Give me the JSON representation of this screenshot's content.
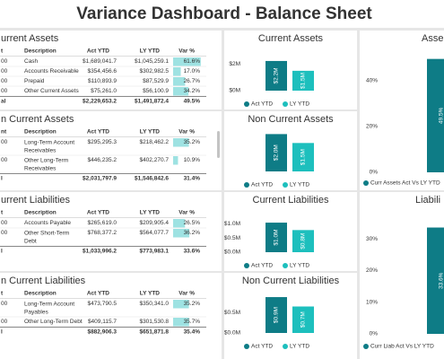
{
  "header": {
    "title": "Variance Dashboard - Balance Sheet"
  },
  "tables": [
    {
      "title": "urrent Assets",
      "columns": [
        "t",
        "Description",
        "Act YTD",
        "LY YTD",
        "Var %"
      ],
      "rows": [
        [
          "00",
          "Cash",
          "$1,689,041.7",
          "$1,045,259.1",
          "61.6%"
        ],
        [
          "00",
          "Accounts Receivable",
          "$354,456.6",
          "$302,982.5",
          "17.0%"
        ],
        [
          "00",
          "Prepaid",
          "$110,893.9",
          "$87,529.9",
          "26.7%"
        ],
        [
          "00",
          "Other Current Assets",
          "$75,261.0",
          "$56,100.9",
          "34.2%"
        ]
      ],
      "total": [
        "al",
        "$2,229,653.2",
        "$1,491,872.4",
        "49.5%"
      ]
    },
    {
      "title": "n Current Assets",
      "columns": [
        "nt",
        "Description",
        "Act YTD",
        "LY YTD",
        "Var %"
      ],
      "rows": [
        [
          "00",
          "Long-Term Account Receivables",
          "$295,295.3",
          "$218,462.2",
          "35.2%"
        ],
        [
          "00",
          "Other Long-Term Receivables",
          "$446,235.2",
          "$402,270.7",
          "10.9%"
        ]
      ],
      "total": [
        "l",
        "$2,031,797.9",
        "$1,546,842.6",
        "31.4%"
      ]
    },
    {
      "title": "urrent Liabilities",
      "columns": [
        "t",
        "Description",
        "Act YTD",
        "LY YTD",
        "Var %"
      ],
      "rows": [
        [
          "00",
          "Accounts Payable",
          "$265,619.0",
          "$209,905.4",
          "26.5%"
        ],
        [
          "00",
          "Other Short-Term Debt",
          "$768,377.2",
          "$564,077.7",
          "36.2%"
        ]
      ],
      "total": [
        "l",
        "$1,033,996.2",
        "$773,983.1",
        "33.6%"
      ]
    },
    {
      "title": "n Current Liabilities",
      "columns": [
        "t",
        "Description",
        "Act YTD",
        "LY YTD",
        "Var %"
      ],
      "rows": [
        [
          "00",
          "Long-Term Account Payables",
          "$473,790.5",
          "$350,341.0",
          "35.2%"
        ],
        [
          "00",
          "Other Long-Term Debt",
          "$409,115.7",
          "$301,530.8",
          "35.7%"
        ]
      ],
      "total": [
        "l",
        "$882,906.3",
        "$651,871.8",
        "35.4%"
      ]
    }
  ],
  "charts": [
    {
      "type": "bar",
      "title": "Current Assets",
      "ylim": [
        0,
        2.9
      ],
      "yticks": [
        {
          "value": 0,
          "label": "$0M"
        },
        {
          "value": 2,
          "label": "$2M"
        }
      ],
      "series": [
        {
          "name": "Act YTD",
          "color": "#0e7c86",
          "values": [
            2.2296532
          ],
          "value_labels": [
            "$2.2M"
          ]
        },
        {
          "name": "LY YTD",
          "color": "#1dbfbd",
          "values": [
            1.4918724
          ],
          "value_labels": [
            "$1.5M"
          ]
        }
      ]
    },
    {
      "type": "bar",
      "title": "Non Current Assets",
      "ylim": [
        0,
        2.1
      ],
      "series": [
        {
          "name": "Act YTD",
          "color": "#0e7c86",
          "values": [
            2.0317979
          ],
          "value_labels": [
            "$2.0M"
          ]
        },
        {
          "name": "LY YTD",
          "color": "#1dbfbd",
          "values": [
            1.5468426
          ],
          "value_labels": [
            "$1.5M"
          ]
        }
      ]
    },
    {
      "type": "bar",
      "title": "Current Liabilities",
      "ylim": [
        0,
        1.35
      ],
      "yticks": [
        {
          "value": 0,
          "label": "$0.0M"
        },
        {
          "value": 0.5,
          "label": "$0.5M"
        },
        {
          "value": 1,
          "label": "$1.0M"
        }
      ],
      "series": [
        {
          "name": "Act YTD",
          "color": "#0e7c86",
          "values": [
            1.0339962
          ],
          "value_labels": [
            "$1.0M"
          ]
        },
        {
          "name": "LY YTD",
          "color": "#1dbfbd",
          "values": [
            0.7739831
          ],
          "value_labels": [
            "$0.8M"
          ]
        }
      ]
    },
    {
      "type": "bar",
      "title": "Non Current Liabilities",
      "ylim": [
        0,
        0.95
      ],
      "yticks": [
        {
          "value": 0,
          "label": "$0.0M"
        },
        {
          "value": 0.5,
          "label": "$0.5M"
        }
      ],
      "series": [
        {
          "name": "Act YTD",
          "color": "#0e7c86",
          "values": [
            0.8829063
          ],
          "value_labels": [
            "$0.9M"
          ]
        },
        {
          "name": "LY YTD",
          "color": "#1dbfbd",
          "values": [
            0.6518718
          ],
          "value_labels": [
            "$0.7M"
          ]
        }
      ]
    },
    {
      "type": "bar",
      "title": "Asse",
      "ylim": [
        0,
        52.5
      ],
      "yticks": [
        {
          "value": 0,
          "label": "0%"
        },
        {
          "value": 20,
          "label": "20%"
        },
        {
          "value": 40,
          "label": "40%"
        }
      ],
      "series": [
        {
          "name": "Curr Assets Act Vs LY YTD",
          "color": "#0e7c86",
          "values": [
            49.5
          ],
          "value_labels": [
            "49.5%"
          ]
        }
      ]
    },
    {
      "type": "bar",
      "title": "Liabili",
      "ylim": [
        0,
        38
      ],
      "yticks": [
        {
          "value": 0,
          "label": "0%"
        },
        {
          "value": 10,
          "label": "10%"
        },
        {
          "value": 20,
          "label": "20%"
        },
        {
          "value": 30,
          "label": "30%"
        }
      ],
      "series": [
        {
          "name": "Curr Liab Act Vs LY YTD",
          "color": "#0e7c86",
          "values": [
            33.6
          ],
          "value_labels": [
            "33.6%"
          ]
        }
      ]
    }
  ]
}
